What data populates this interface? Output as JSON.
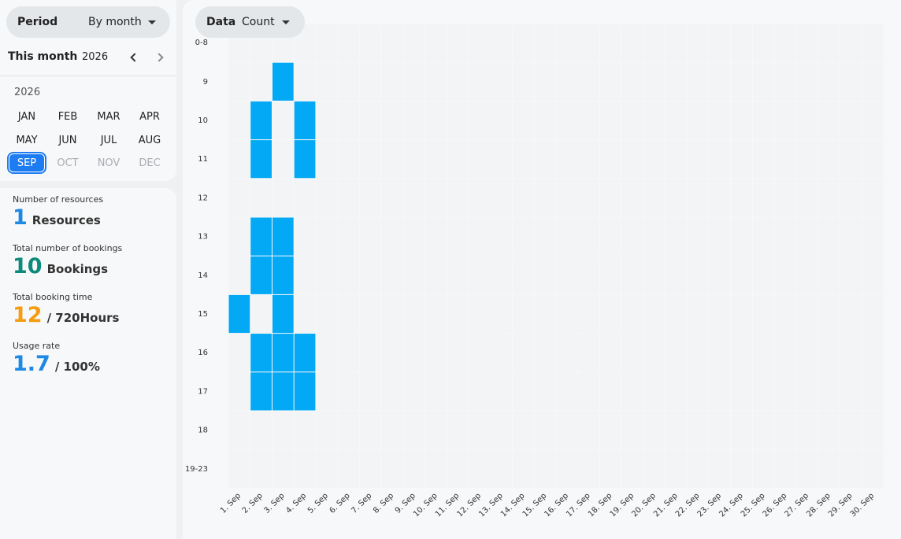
{
  "period": {
    "label": "Period",
    "value": "By month"
  },
  "month_nav": {
    "this_month": "This month",
    "year": "2026"
  },
  "calendar": {
    "year": "2026",
    "months": [
      {
        "label": "JAN",
        "state": "normal"
      },
      {
        "label": "FEB",
        "state": "normal"
      },
      {
        "label": "MAR",
        "state": "normal"
      },
      {
        "label": "APR",
        "state": "normal"
      },
      {
        "label": "MAY",
        "state": "normal"
      },
      {
        "label": "JUN",
        "state": "normal"
      },
      {
        "label": "JUL",
        "state": "normal"
      },
      {
        "label": "AUG",
        "state": "normal"
      },
      {
        "label": "SEP",
        "state": "selected"
      },
      {
        "label": "OCT",
        "state": "disabled"
      },
      {
        "label": "NOV",
        "state": "disabled"
      },
      {
        "label": "DEC",
        "state": "disabled"
      }
    ]
  },
  "stats": {
    "resources": {
      "label": "Number of resources",
      "value": "1",
      "unit": "Resources",
      "color": "#1e88e5"
    },
    "bookings": {
      "label": "Total number of bookings",
      "value": "10",
      "unit": "Bookings",
      "color": "#0e8a7a"
    },
    "time": {
      "label": "Total booking time",
      "value": "12",
      "unit": "/ 720Hours",
      "color": "#f59c10"
    },
    "usage": {
      "label": "Usage rate",
      "value": "1.7",
      "unit": "/ 100%",
      "color": "#1e88e5"
    }
  },
  "data_select": {
    "label": "Data",
    "value": "Count"
  },
  "chart_data": {
    "type": "heatmap",
    "cell_color": "#03a9f4",
    "empty_color": "#f2f4f6",
    "y_labels": [
      "0-8",
      "9",
      "10",
      "11",
      "12",
      "13",
      "14",
      "15",
      "16",
      "17",
      "18",
      "19-23"
    ],
    "x_labels": [
      "1. Sep",
      "2. Sep",
      "3. Sep",
      "4. Sep",
      "5. Sep",
      "6. Sep",
      "7. Sep",
      "8. Sep",
      "9. Sep",
      "10. Sep",
      "11. Sep",
      "12. Sep",
      "13. Sep",
      "14. Sep",
      "15. Sep",
      "16. Sep",
      "17. Sep",
      "18. Sep",
      "19. Sep",
      "20. Sep",
      "21. Sep",
      "22. Sep",
      "23. Sep",
      "24. Sep",
      "25. Sep",
      "26. Sep",
      "27. Sep",
      "28. Sep",
      "29. Sep",
      "30. Sep"
    ],
    "filled_cells": [
      {
        "x": "3. Sep",
        "y": "9"
      },
      {
        "x": "2. Sep",
        "y": "10"
      },
      {
        "x": "4. Sep",
        "y": "10"
      },
      {
        "x": "2. Sep",
        "y": "11"
      },
      {
        "x": "4. Sep",
        "y": "11"
      },
      {
        "x": "2. Sep",
        "y": "13"
      },
      {
        "x": "3. Sep",
        "y": "13"
      },
      {
        "x": "2. Sep",
        "y": "14"
      },
      {
        "x": "3. Sep",
        "y": "14"
      },
      {
        "x": "1. Sep",
        "y": "15"
      },
      {
        "x": "3. Sep",
        "y": "15"
      },
      {
        "x": "2. Sep",
        "y": "16"
      },
      {
        "x": "3. Sep",
        "y": "16"
      },
      {
        "x": "4. Sep",
        "y": "16"
      },
      {
        "x": "2. Sep",
        "y": "17"
      },
      {
        "x": "3. Sep",
        "y": "17"
      },
      {
        "x": "4. Sep",
        "y": "17"
      }
    ]
  }
}
